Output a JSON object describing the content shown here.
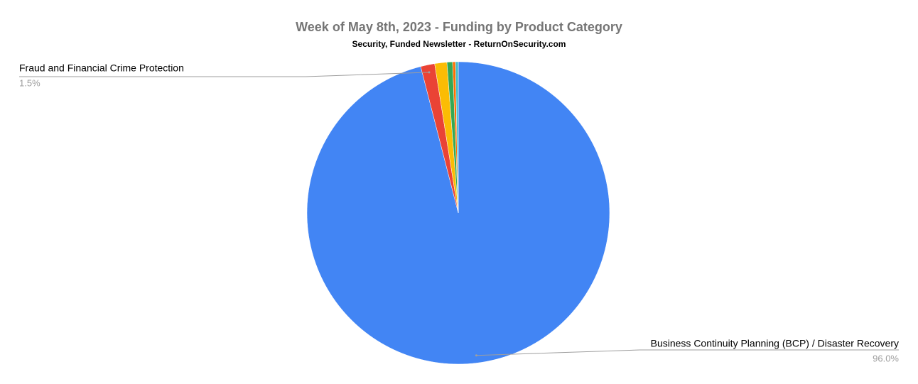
{
  "chart_data": {
    "type": "pie",
    "title": "Week of May 8th, 2023 - Funding by Product Category",
    "subtitle": "Security, Funded Newsletter - ReturnOnSecurity.com",
    "categories": [
      "Business Continuity Planning (BCP) / Disaster Recovery",
      "Fraud and Financial Crime Protection",
      null,
      null,
      null,
      null
    ],
    "values": [
      96.0,
      1.5,
      1.3,
      0.6,
      0.3,
      0.3
    ],
    "value_labels": [
      "96.0%",
      "1.5%",
      null,
      null,
      null,
      null
    ],
    "colors": [
      "#4285f4",
      "#ea4335",
      "#fbbc04",
      "#34a853",
      "#ff6d01",
      "#46bdc6"
    ]
  }
}
